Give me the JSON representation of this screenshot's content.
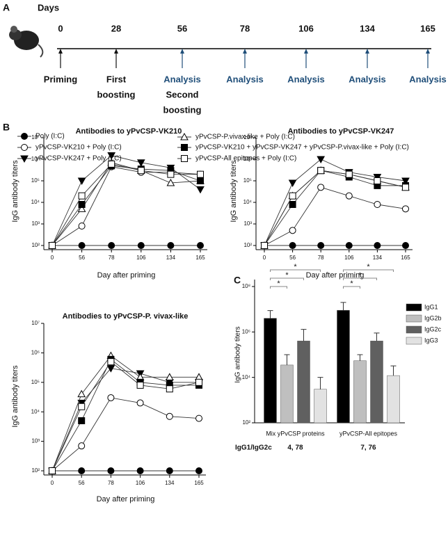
{
  "panel_labels": [
    "A",
    "B",
    "C"
  ],
  "timeline": {
    "days_label": "Days",
    "days": [
      0,
      28,
      56,
      78,
      106,
      134,
      165
    ],
    "events": [
      [
        {
          "text": "Priming",
          "color": "#111111"
        }
      ],
      [
        {
          "text": "First",
          "color": "#111111"
        },
        {
          "text": "boosting",
          "color": "#111111"
        }
      ],
      [
        {
          "text": "Analysis",
          "color": "#1f4e79"
        },
        {
          "text": "Second",
          "color": "#111111"
        },
        {
          "text": "boosting",
          "color": "#111111"
        }
      ],
      [
        {
          "text": "Analysis",
          "color": "#1f4e79"
        }
      ],
      [
        {
          "text": "Analysis",
          "color": "#1f4e79"
        }
      ],
      [
        {
          "text": "Analysis",
          "color": "#1f4e79"
        }
      ],
      [
        {
          "text": "Analysis",
          "color": "#1f4e79"
        }
      ]
    ]
  },
  "chart_data": [
    {
      "type": "line",
      "title": "Antibodies to yPvCSP-VK210",
      "x_label": "Day after priming",
      "y_label": "IgG antibody titers",
      "log_y": true,
      "legend": true,
      "categories": [
        "0",
        "56",
        "78",
        "106",
        "134",
        "165"
      ],
      "ylim": [
        100,
        10000000
      ],
      "yticks": [
        {
          "value": 100,
          "label": "10²"
        },
        {
          "value": 1000,
          "label": "10³"
        },
        {
          "value": 10000,
          "label": "10⁴"
        },
        {
          "value": 100000,
          "label": "10⁵"
        },
        {
          "value": 1000000,
          "label": "10⁶"
        },
        {
          "value": 10000000,
          "label": "10⁷"
        }
      ],
      "series": [
        {
          "name": "Poly (I:C)",
          "color": "#000000",
          "marker": "circle-filled",
          "values": [
            100,
            100,
            100,
            100,
            100,
            100
          ]
        },
        {
          "name": "yPvCSP-VK210 + Poly (I:C)",
          "color": "#000000",
          "marker": "circle-open",
          "values": [
            100,
            800,
            450000,
            250000,
            250000,
            200000
          ]
        },
        {
          "name": "yPvCSP-VK247 + Poly (I:C)",
          "color": "#000000",
          "marker": "triangle-down-filled",
          "values": [
            100,
            100000,
            1500000,
            700000,
            400000,
            40000
          ]
        },
        {
          "name": "yPvCSP-P.vivax-like + Poly (I:C)",
          "color": "#000000",
          "marker": "triangle-up-open",
          "values": [
            100,
            5000,
            700000,
            300000,
            80000,
            100000
          ]
        },
        {
          "name": "yPvCSP-VK210 + yPvCSP-VK247 + yPvCSP-P.vivax-like + Poly (I:C)",
          "color": "#000000",
          "marker": "square-filled",
          "values": [
            100,
            8000,
            500000,
            350000,
            300000,
            100000
          ]
        },
        {
          "name": "yPvCSP-All epitopes + Poly (I:C)",
          "color": "#000000",
          "marker": "square-open",
          "values": [
            100,
            20000,
            600000,
            300000,
            200000,
            200000
          ]
        }
      ]
    },
    {
      "type": "line",
      "title": "Antibodies to yPvCSP-VK247",
      "x_label": "Day after priming",
      "y_label": "IgG antibody titers",
      "log_y": true,
      "categories": [
        "0",
        "56",
        "78",
        "106",
        "134",
        "165"
      ],
      "ylim": [
        100,
        10000000
      ],
      "yticks": [
        {
          "value": 100,
          "label": "10²"
        },
        {
          "value": 1000,
          "label": "10³"
        },
        {
          "value": 10000,
          "label": "10⁴"
        },
        {
          "value": 100000,
          "label": "10⁵"
        },
        {
          "value": 1000000,
          "label": "10⁶"
        },
        {
          "value": 10000000,
          "label": "10⁷"
        }
      ],
      "series": [
        {
          "color": "#000000",
          "marker": "circle-filled",
          "values": [
            100,
            100,
            100,
            100,
            100,
            100
          ]
        },
        {
          "color": "#000000",
          "marker": "circle-open",
          "values": [
            100,
            500,
            50000,
            20000,
            8000,
            5000
          ]
        },
        {
          "color": "#000000",
          "marker": "triangle-down-filled",
          "values": [
            100,
            80000,
            1000000,
            250000,
            150000,
            100000
          ]
        },
        {
          "color": "#000000",
          "marker": "triangle-up-open",
          "values": [
            100,
            20000,
            300000,
            200000,
            100000,
            50000
          ]
        },
        {
          "color": "#000000",
          "marker": "square-filled",
          "values": [
            100,
            8000,
            300000,
            150000,
            60000,
            60000
          ]
        },
        {
          "color": "#000000",
          "marker": "square-open",
          "values": [
            100,
            20000,
            300000,
            200000,
            100000,
            50000
          ]
        }
      ]
    },
    {
      "type": "line",
      "title": "Antibodies to yPvCSP-P. vivax-like",
      "x_label": "Day after priming",
      "y_label": "IgG antibody titers",
      "log_y": true,
      "categories": [
        "0",
        "56",
        "78",
        "106",
        "134",
        "165"
      ],
      "ylim": [
        100,
        10000000
      ],
      "yticks": [
        {
          "value": 100,
          "label": "10²"
        },
        {
          "value": 1000,
          "label": "10³"
        },
        {
          "value": 10000,
          "label": "10⁴"
        },
        {
          "value": 100000,
          "label": "10⁵"
        },
        {
          "value": 1000000,
          "label": "10⁶"
        },
        {
          "value": 10000000,
          "label": "10⁷"
        }
      ],
      "series": [
        {
          "color": "#000000",
          "marker": "circle-filled",
          "values": [
            100,
            100,
            100,
            100,
            100,
            100
          ]
        },
        {
          "color": "#000000",
          "marker": "circle-open",
          "values": [
            100,
            700,
            30000,
            20000,
            7000,
            6000
          ]
        },
        {
          "color": "#000000",
          "marker": "triangle-down-filled",
          "values": [
            100,
            20000,
            300000,
            200000,
            100000,
            100000
          ]
        },
        {
          "color": "#000000",
          "marker": "triangle-up-open",
          "values": [
            100,
            40000,
            800000,
            150000,
            150000,
            150000
          ]
        },
        {
          "color": "#000000",
          "marker": "square-filled",
          "values": [
            100,
            5000,
            600000,
            100000,
            80000,
            80000
          ]
        },
        {
          "color": "#000000",
          "marker": "square-open",
          "values": [
            100,
            15000,
            500000,
            80000,
            60000,
            100000
          ]
        }
      ]
    },
    {
      "type": "bar",
      "y_label": "IgG antibody titers",
      "log_y": true,
      "categories": [
        "Mix yPvCSP proteins",
        "yPvCSP-All epitopes"
      ],
      "ylim": [
        100,
        100000000
      ],
      "yticks": [
        {
          "value": 100,
          "label": "10²"
        },
        {
          "value": 10000,
          "label": "10⁴"
        },
        {
          "value": 1000000,
          "label": "10⁶"
        },
        {
          "value": 100000000,
          "label": "10⁸"
        }
      ],
      "series": [
        {
          "name": "IgG1",
          "color": "#000000",
          "values": [
            4000000,
            9000000
          ],
          "errors": [
            4700000,
            11000000
          ]
        },
        {
          "name": "IgG2b",
          "color": "#bfbfbf",
          "values": [
            35000,
            54000
          ],
          "errors": [
            65000,
            46000
          ]
        },
        {
          "name": "IgG2c",
          "color": "#606060",
          "values": [
            400000,
            400000
          ],
          "errors": [
            900000,
            500000
          ]
        },
        {
          "name": "IgG3",
          "color": "#e2e2e2",
          "values": [
            3000,
            12000
          ],
          "errors": [
            7000,
            20000
          ]
        }
      ],
      "annotations": [
        "*",
        "*",
        "*",
        "*",
        "*",
        "*"
      ],
      "ratio_label": "IgG1/IgG2c",
      "ratios": [
        "4, 78",
        "7, 76"
      ]
    }
  ]
}
